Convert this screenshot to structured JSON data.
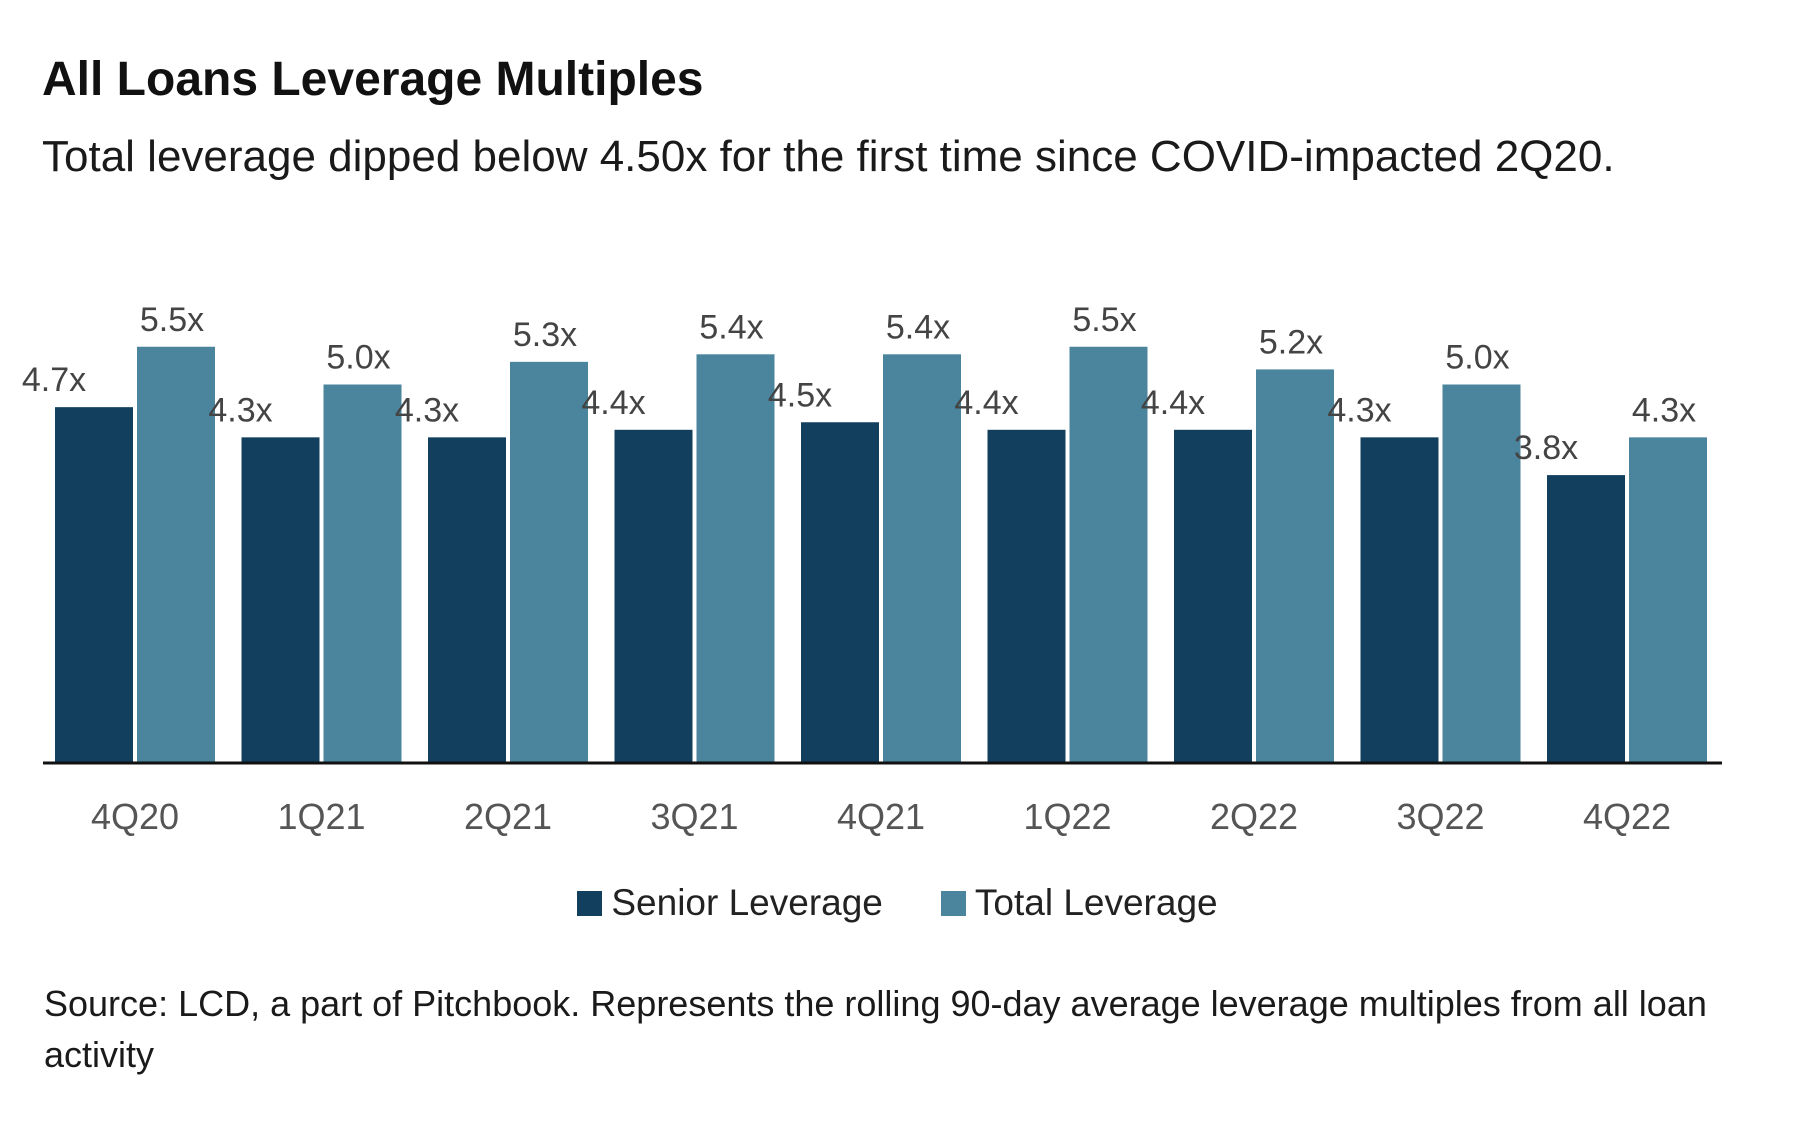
{
  "title": "All Loans Leverage Multiples",
  "subtitle": "Total leverage dipped below 4.50x for the first time since COVID-impacted 2Q20.",
  "footnote": "Source: LCD, a part of Pitchbook. Represents the rolling 90-day average leverage multiples from all loan activity",
  "colors": {
    "senior": "#123f5e",
    "total": "#4a849d",
    "axis": "#111111",
    "label": "#444444"
  },
  "chart_data": {
    "type": "bar",
    "title": "All Loans Leverage Multiples",
    "subtitle": "Total leverage dipped below 4.50x for the first time since COVID-impacted 2Q20.",
    "xlabel": "",
    "ylabel": "",
    "categories": [
      "4Q20",
      "1Q21",
      "2Q21",
      "3Q21",
      "4Q21",
      "1Q22",
      "2Q22",
      "3Q22",
      "4Q22"
    ],
    "ylim": [
      0,
      5.5
    ],
    "grid": false,
    "legend_position": "bottom-center",
    "series": [
      {
        "name": "Senior Leverage",
        "values": [
          4.7,
          4.3,
          4.3,
          4.4,
          4.5,
          4.4,
          4.4,
          4.3,
          3.8
        ],
        "labels": [
          "4.7x",
          "4.3x",
          "4.3x",
          "4.4x",
          "4.5x",
          "4.4x",
          "4.4x",
          "4.3x",
          "3.8x"
        ]
      },
      {
        "name": "Total Leverage",
        "values": [
          5.5,
          5.0,
          5.3,
          5.4,
          5.4,
          5.5,
          5.2,
          5.0,
          4.3
        ],
        "labels": [
          "5.5x",
          "5.0x",
          "5.3x",
          "5.4x",
          "5.4x",
          "5.5x",
          "5.2x",
          "5.0x",
          "4.3x"
        ]
      }
    ]
  }
}
